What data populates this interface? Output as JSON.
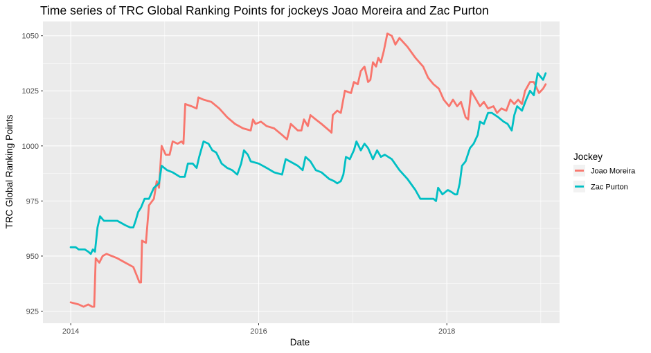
{
  "chart_data": {
    "type": "line",
    "title": "Time series of TRC Global Ranking Points for jockeys Joao Moreira and Zac Purton",
    "xlabel": "Date",
    "ylabel": "TRC Global Ranking Points",
    "xlim": [
      "2013-09-15",
      "2019-03-15"
    ],
    "ylim": [
      919.5,
      1056.5
    ],
    "x_ticks": [
      "2014",
      "2016",
      "2018"
    ],
    "y_ticks": [
      925,
      950,
      975,
      1000,
      1025,
      1050
    ],
    "grid": true,
    "legend": {
      "title": "Jockey",
      "position": "right"
    },
    "series": [
      {
        "name": "Joao Moreira",
        "color": "#F8766D",
        "points": [
          [
            "2014-01-01",
            929
          ],
          [
            "2014-02-01",
            928
          ],
          [
            "2014-02-20",
            927
          ],
          [
            "2014-03-10",
            928
          ],
          [
            "2014-03-25",
            927
          ],
          [
            "2014-04-02",
            927
          ],
          [
            "2014-04-08",
            949
          ],
          [
            "2014-04-22",
            947
          ],
          [
            "2014-05-05",
            950
          ],
          [
            "2014-05-20",
            951
          ],
          [
            "2014-06-10",
            950
          ],
          [
            "2014-07-01",
            949
          ],
          [
            "2014-08-01",
            947
          ],
          [
            "2014-09-01",
            945
          ],
          [
            "2014-09-15",
            941
          ],
          [
            "2014-09-25",
            938
          ],
          [
            "2014-10-01",
            938
          ],
          [
            "2014-10-05",
            957
          ],
          [
            "2014-10-20",
            956
          ],
          [
            "2014-11-01",
            973
          ],
          [
            "2014-11-20",
            976
          ],
          [
            "2014-12-01",
            984
          ],
          [
            "2014-12-10",
            981
          ],
          [
            "2014-12-20",
            1000
          ],
          [
            "2015-01-05",
            996
          ],
          [
            "2015-01-20",
            996
          ],
          [
            "2015-02-01",
            1002
          ],
          [
            "2015-02-20",
            1001
          ],
          [
            "2015-03-08",
            1002
          ],
          [
            "2015-03-15",
            1001
          ],
          [
            "2015-03-22",
            1019
          ],
          [
            "2015-04-15",
            1018
          ],
          [
            "2015-05-05",
            1017
          ],
          [
            "2015-05-12",
            1022
          ],
          [
            "2015-06-01",
            1021
          ],
          [
            "2015-07-01",
            1020
          ],
          [
            "2015-08-01",
            1017
          ],
          [
            "2015-09-01",
            1013
          ],
          [
            "2015-10-01",
            1010
          ],
          [
            "2015-11-01",
            1008
          ],
          [
            "2015-12-01",
            1007
          ],
          [
            "2015-12-10",
            1012
          ],
          [
            "2015-12-20",
            1010
          ],
          [
            "2016-01-10",
            1011
          ],
          [
            "2016-02-01",
            1009
          ],
          [
            "2016-03-01",
            1008
          ],
          [
            "2016-04-01",
            1005
          ],
          [
            "2016-04-20",
            1003
          ],
          [
            "2016-05-05",
            1010
          ],
          [
            "2016-06-01",
            1007
          ],
          [
            "2016-06-15",
            1007
          ],
          [
            "2016-06-25",
            1012
          ],
          [
            "2016-07-10",
            1009
          ],
          [
            "2016-07-20",
            1014
          ],
          [
            "2016-08-10",
            1012
          ],
          [
            "2016-09-01",
            1010
          ],
          [
            "2016-10-01",
            1007
          ],
          [
            "2016-10-10",
            1006
          ],
          [
            "2016-10-15",
            1014
          ],
          [
            "2016-11-01",
            1016
          ],
          [
            "2016-11-15",
            1015
          ],
          [
            "2016-12-01",
            1025
          ],
          [
            "2016-12-25",
            1024
          ],
          [
            "2017-01-05",
            1029
          ],
          [
            "2017-01-20",
            1028
          ],
          [
            "2017-02-01",
            1034
          ],
          [
            "2017-02-15",
            1036
          ],
          [
            "2017-03-01",
            1029
          ],
          [
            "2017-03-10",
            1030
          ],
          [
            "2017-03-20",
            1038
          ],
          [
            "2017-04-01",
            1036
          ],
          [
            "2017-04-10",
            1040
          ],
          [
            "2017-04-20",
            1038
          ],
          [
            "2017-05-01",
            1043
          ],
          [
            "2017-05-15",
            1051
          ],
          [
            "2017-06-01",
            1050
          ],
          [
            "2017-06-15",
            1046
          ],
          [
            "2017-07-01",
            1049
          ],
          [
            "2017-08-01",
            1045
          ],
          [
            "2017-09-01",
            1040
          ],
          [
            "2017-10-01",
            1036
          ],
          [
            "2017-10-20",
            1031
          ],
          [
            "2017-11-10",
            1028
          ],
          [
            "2017-12-01",
            1026
          ],
          [
            "2017-12-20",
            1021
          ],
          [
            "2018-01-10",
            1018
          ],
          [
            "2018-01-25",
            1021
          ],
          [
            "2018-02-10",
            1018
          ],
          [
            "2018-02-25",
            1020
          ],
          [
            "2018-03-15",
            1013
          ],
          [
            "2018-03-25",
            1012
          ],
          [
            "2018-04-05",
            1025
          ],
          [
            "2018-04-20",
            1022
          ],
          [
            "2018-05-10",
            1018
          ],
          [
            "2018-05-25",
            1020
          ],
          [
            "2018-06-10",
            1017
          ],
          [
            "2018-07-01",
            1018
          ],
          [
            "2018-07-15",
            1015
          ],
          [
            "2018-08-01",
            1017
          ],
          [
            "2018-08-20",
            1016
          ],
          [
            "2018-09-05",
            1021
          ],
          [
            "2018-09-20",
            1019
          ],
          [
            "2018-10-05",
            1021
          ],
          [
            "2018-10-20",
            1019
          ],
          [
            "2018-11-01",
            1025
          ],
          [
            "2018-11-20",
            1029
          ],
          [
            "2018-12-05",
            1029
          ],
          [
            "2018-12-25",
            1024
          ],
          [
            "2019-01-10",
            1026
          ],
          [
            "2019-01-20",
            1028
          ]
        ]
      },
      {
        "name": "Zac Purton",
        "color": "#00BFC4",
        "points": [
          [
            "2014-01-01",
            954
          ],
          [
            "2014-01-20",
            954
          ],
          [
            "2014-02-01",
            953
          ],
          [
            "2014-02-25",
            953
          ],
          [
            "2014-03-10",
            952
          ],
          [
            "2014-03-20",
            951
          ],
          [
            "2014-03-28",
            953
          ],
          [
            "2014-04-05",
            952
          ],
          [
            "2014-04-15",
            963
          ],
          [
            "2014-04-25",
            968
          ],
          [
            "2014-05-10",
            966
          ],
          [
            "2014-06-01",
            966
          ],
          [
            "2014-07-01",
            966
          ],
          [
            "2014-08-01",
            964
          ],
          [
            "2014-08-20",
            963
          ],
          [
            "2014-09-01",
            963
          ],
          [
            "2014-09-10",
            966
          ],
          [
            "2014-09-20",
            970
          ],
          [
            "2014-10-01",
            972
          ],
          [
            "2014-10-15",
            976
          ],
          [
            "2014-11-01",
            976
          ],
          [
            "2014-11-20",
            981
          ],
          [
            "2014-12-10",
            983
          ],
          [
            "2014-12-20",
            991
          ],
          [
            "2015-01-10",
            989
          ],
          [
            "2015-02-01",
            988
          ],
          [
            "2015-03-01",
            986
          ],
          [
            "2015-03-20",
            986
          ],
          [
            "2015-04-01",
            992
          ],
          [
            "2015-04-20",
            992
          ],
          [
            "2015-05-05",
            990
          ],
          [
            "2015-05-15",
            995
          ],
          [
            "2015-06-01",
            1002
          ],
          [
            "2015-06-20",
            1001
          ],
          [
            "2015-07-05",
            998
          ],
          [
            "2015-07-20",
            997
          ],
          [
            "2015-08-10",
            992
          ],
          [
            "2015-09-01",
            990
          ],
          [
            "2015-09-20",
            989
          ],
          [
            "2015-10-10",
            987
          ],
          [
            "2015-10-25",
            992
          ],
          [
            "2015-11-05",
            998
          ],
          [
            "2015-11-20",
            996
          ],
          [
            "2015-12-01",
            993
          ],
          [
            "2016-01-01",
            992
          ],
          [
            "2016-02-01",
            990
          ],
          [
            "2016-03-01",
            988
          ],
          [
            "2016-04-01",
            987
          ],
          [
            "2016-04-15",
            994
          ],
          [
            "2016-05-01",
            993
          ],
          [
            "2016-06-01",
            991
          ],
          [
            "2016-06-20",
            989
          ],
          [
            "2016-07-01",
            995
          ],
          [
            "2016-07-20",
            993
          ],
          [
            "2016-08-10",
            989
          ],
          [
            "2016-09-01",
            988
          ],
          [
            "2016-10-01",
            985
          ],
          [
            "2016-10-20",
            984
          ],
          [
            "2016-11-01",
            983
          ],
          [
            "2016-11-15",
            984
          ],
          [
            "2016-11-25",
            987
          ],
          [
            "2016-12-05",
            995
          ],
          [
            "2016-12-20",
            994
          ],
          [
            "2017-01-05",
            998
          ],
          [
            "2017-01-15",
            1002
          ],
          [
            "2017-02-01",
            998
          ],
          [
            "2017-02-15",
            1001
          ],
          [
            "2017-03-01",
            999
          ],
          [
            "2017-03-20",
            994
          ],
          [
            "2017-04-05",
            998
          ],
          [
            "2017-04-20",
            995
          ],
          [
            "2017-05-05",
            996
          ],
          [
            "2017-06-01",
            994
          ],
          [
            "2017-07-01",
            989
          ],
          [
            "2017-08-01",
            985
          ],
          [
            "2017-09-01",
            980
          ],
          [
            "2017-09-20",
            976
          ],
          [
            "2017-10-15",
            976
          ],
          [
            "2017-11-10",
            976
          ],
          [
            "2017-11-20",
            975
          ],
          [
            "2017-11-28",
            981
          ],
          [
            "2017-12-15",
            978
          ],
          [
            "2018-01-05",
            980
          ],
          [
            "2018-01-20",
            979
          ],
          [
            "2018-02-01",
            978
          ],
          [
            "2018-02-10",
            978
          ],
          [
            "2018-02-20",
            983
          ],
          [
            "2018-03-01",
            991
          ],
          [
            "2018-03-15",
            993
          ],
          [
            "2018-04-01",
            999
          ],
          [
            "2018-04-15",
            1001
          ],
          [
            "2018-05-01",
            1005
          ],
          [
            "2018-05-10",
            1011
          ],
          [
            "2018-05-25",
            1010
          ],
          [
            "2018-06-10",
            1015
          ],
          [
            "2018-06-25",
            1015
          ],
          [
            "2018-07-20",
            1013
          ],
          [
            "2018-08-10",
            1011
          ],
          [
            "2018-08-25",
            1010
          ],
          [
            "2018-09-10",
            1007
          ],
          [
            "2018-09-20",
            1014
          ],
          [
            "2018-10-01",
            1018
          ],
          [
            "2018-10-20",
            1016
          ],
          [
            "2018-11-05",
            1021
          ],
          [
            "2018-11-20",
            1025
          ],
          [
            "2018-12-05",
            1023
          ],
          [
            "2018-12-20",
            1033
          ],
          [
            "2019-01-10",
            1030
          ],
          [
            "2019-01-20",
            1033
          ]
        ]
      }
    ]
  }
}
